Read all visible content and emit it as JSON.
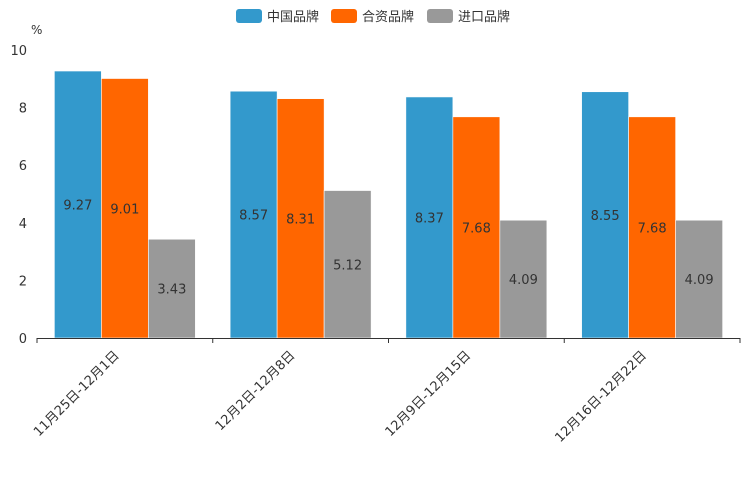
{
  "chart_data": {
    "type": "bar",
    "title": "",
    "ylabel": "%",
    "xlabel": "",
    "ylim": [
      0,
      10
    ],
    "yticks": [
      0,
      2,
      4,
      6,
      8,
      10
    ],
    "categories": [
      "11月25日-12月1日",
      "12月2日-12月8日",
      "12月9日-12月15日",
      "12月16日-12月22日"
    ],
    "series": [
      {
        "name": "中国品牌",
        "color": "#3399CC",
        "values": [
          9.27,
          8.57,
          8.37,
          8.55
        ]
      },
      {
        "name": "合资品牌",
        "color": "#FF6600",
        "values": [
          9.01,
          8.31,
          7.68,
          7.68
        ]
      },
      {
        "name": "进口品牌",
        "color": "#999999",
        "values": [
          3.43,
          5.12,
          4.09,
          4.09
        ]
      }
    ],
    "legend_position": "top-center"
  }
}
